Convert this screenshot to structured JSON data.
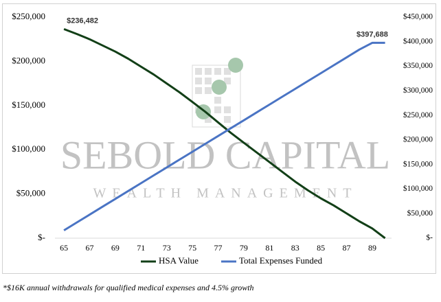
{
  "chart_data": {
    "type": "line",
    "x": [
      65,
      66,
      67,
      68,
      69,
      70,
      71,
      72,
      73,
      74,
      75,
      76,
      77,
      78,
      79,
      80,
      81,
      82,
      83,
      84,
      85,
      86,
      87,
      88,
      89,
      90
    ],
    "xlim": [
      64.3,
      90.5
    ],
    "xticks": [
      65,
      67,
      69,
      71,
      73,
      75,
      77,
      79,
      81,
      83,
      85,
      87,
      89
    ],
    "ylim": [
      0,
      250000
    ],
    "yticks": [
      {
        "value": 0,
        "label": "$-"
      },
      {
        "value": 50000,
        "label": "$50,000"
      },
      {
        "value": 100000,
        "label": "$100,000"
      },
      {
        "value": 150000,
        "label": "$150,000"
      },
      {
        "value": 200000,
        "label": "$200,000"
      },
      {
        "value": 250000,
        "label": "$250,000"
      }
    ],
    "y2lim": [
      0,
      450000
    ],
    "y2ticks": [
      {
        "value": 0,
        "label": "$-"
      },
      {
        "value": 50000,
        "label": "$50,000"
      },
      {
        "value": 100000,
        "label": "$100,000"
      },
      {
        "value": 150000,
        "label": "$150,000"
      },
      {
        "value": 200000,
        "label": "$200,000"
      },
      {
        "value": 250000,
        "label": "$250,000"
      },
      {
        "value": 300000,
        "label": "$300,000"
      },
      {
        "value": 350000,
        "label": "$350,000"
      },
      {
        "value": 400000,
        "label": "$400,000"
      },
      {
        "value": 450000,
        "label": "$450,000"
      }
    ],
    "series": [
      {
        "name": "HSA Value",
        "color": "#123f17",
        "axis": "y",
        "values": [
          236482,
          231000,
          225000,
          218000,
          211000,
          203000,
          194000,
          185000,
          175000,
          165000,
          154000,
          143000,
          131000,
          119000,
          108000,
          97000,
          86000,
          75000,
          64000,
          54000,
          45000,
          37000,
          28000,
          19000,
          11000,
          0
        ],
        "value_labels": [
          "$236,482",
          null,
          null,
          null,
          null,
          null,
          null,
          null,
          null,
          null,
          null,
          null,
          null,
          null,
          null,
          null,
          null,
          null,
          null,
          null,
          null,
          null,
          null,
          null,
          null,
          null
        ]
      },
      {
        "name": "Total Expenses Funded",
        "color": "#4a74c4",
        "axis": "y2",
        "values": [
          16000,
          32000,
          48000,
          64000,
          80000,
          96000,
          112000,
          128000,
          144000,
          160000,
          176000,
          192000,
          208000,
          224000,
          240000,
          256000,
          272000,
          288000,
          304000,
          320000,
          336000,
          352000,
          368000,
          384000,
          397688,
          397688
        ],
        "value_labels": [
          null,
          null,
          null,
          null,
          null,
          null,
          null,
          null,
          null,
          null,
          null,
          null,
          null,
          null,
          null,
          null,
          null,
          null,
          null,
          null,
          null,
          null,
          null,
          null,
          "$397,688",
          null
        ]
      }
    ],
    "watermark": {
      "name": "SEBOLD CAPITAL",
      "tagline": "WEALTH MANAGEMENT"
    },
    "note": "*$16K annual withdrawals for qualified medical expenses and 4.5% growth"
  }
}
